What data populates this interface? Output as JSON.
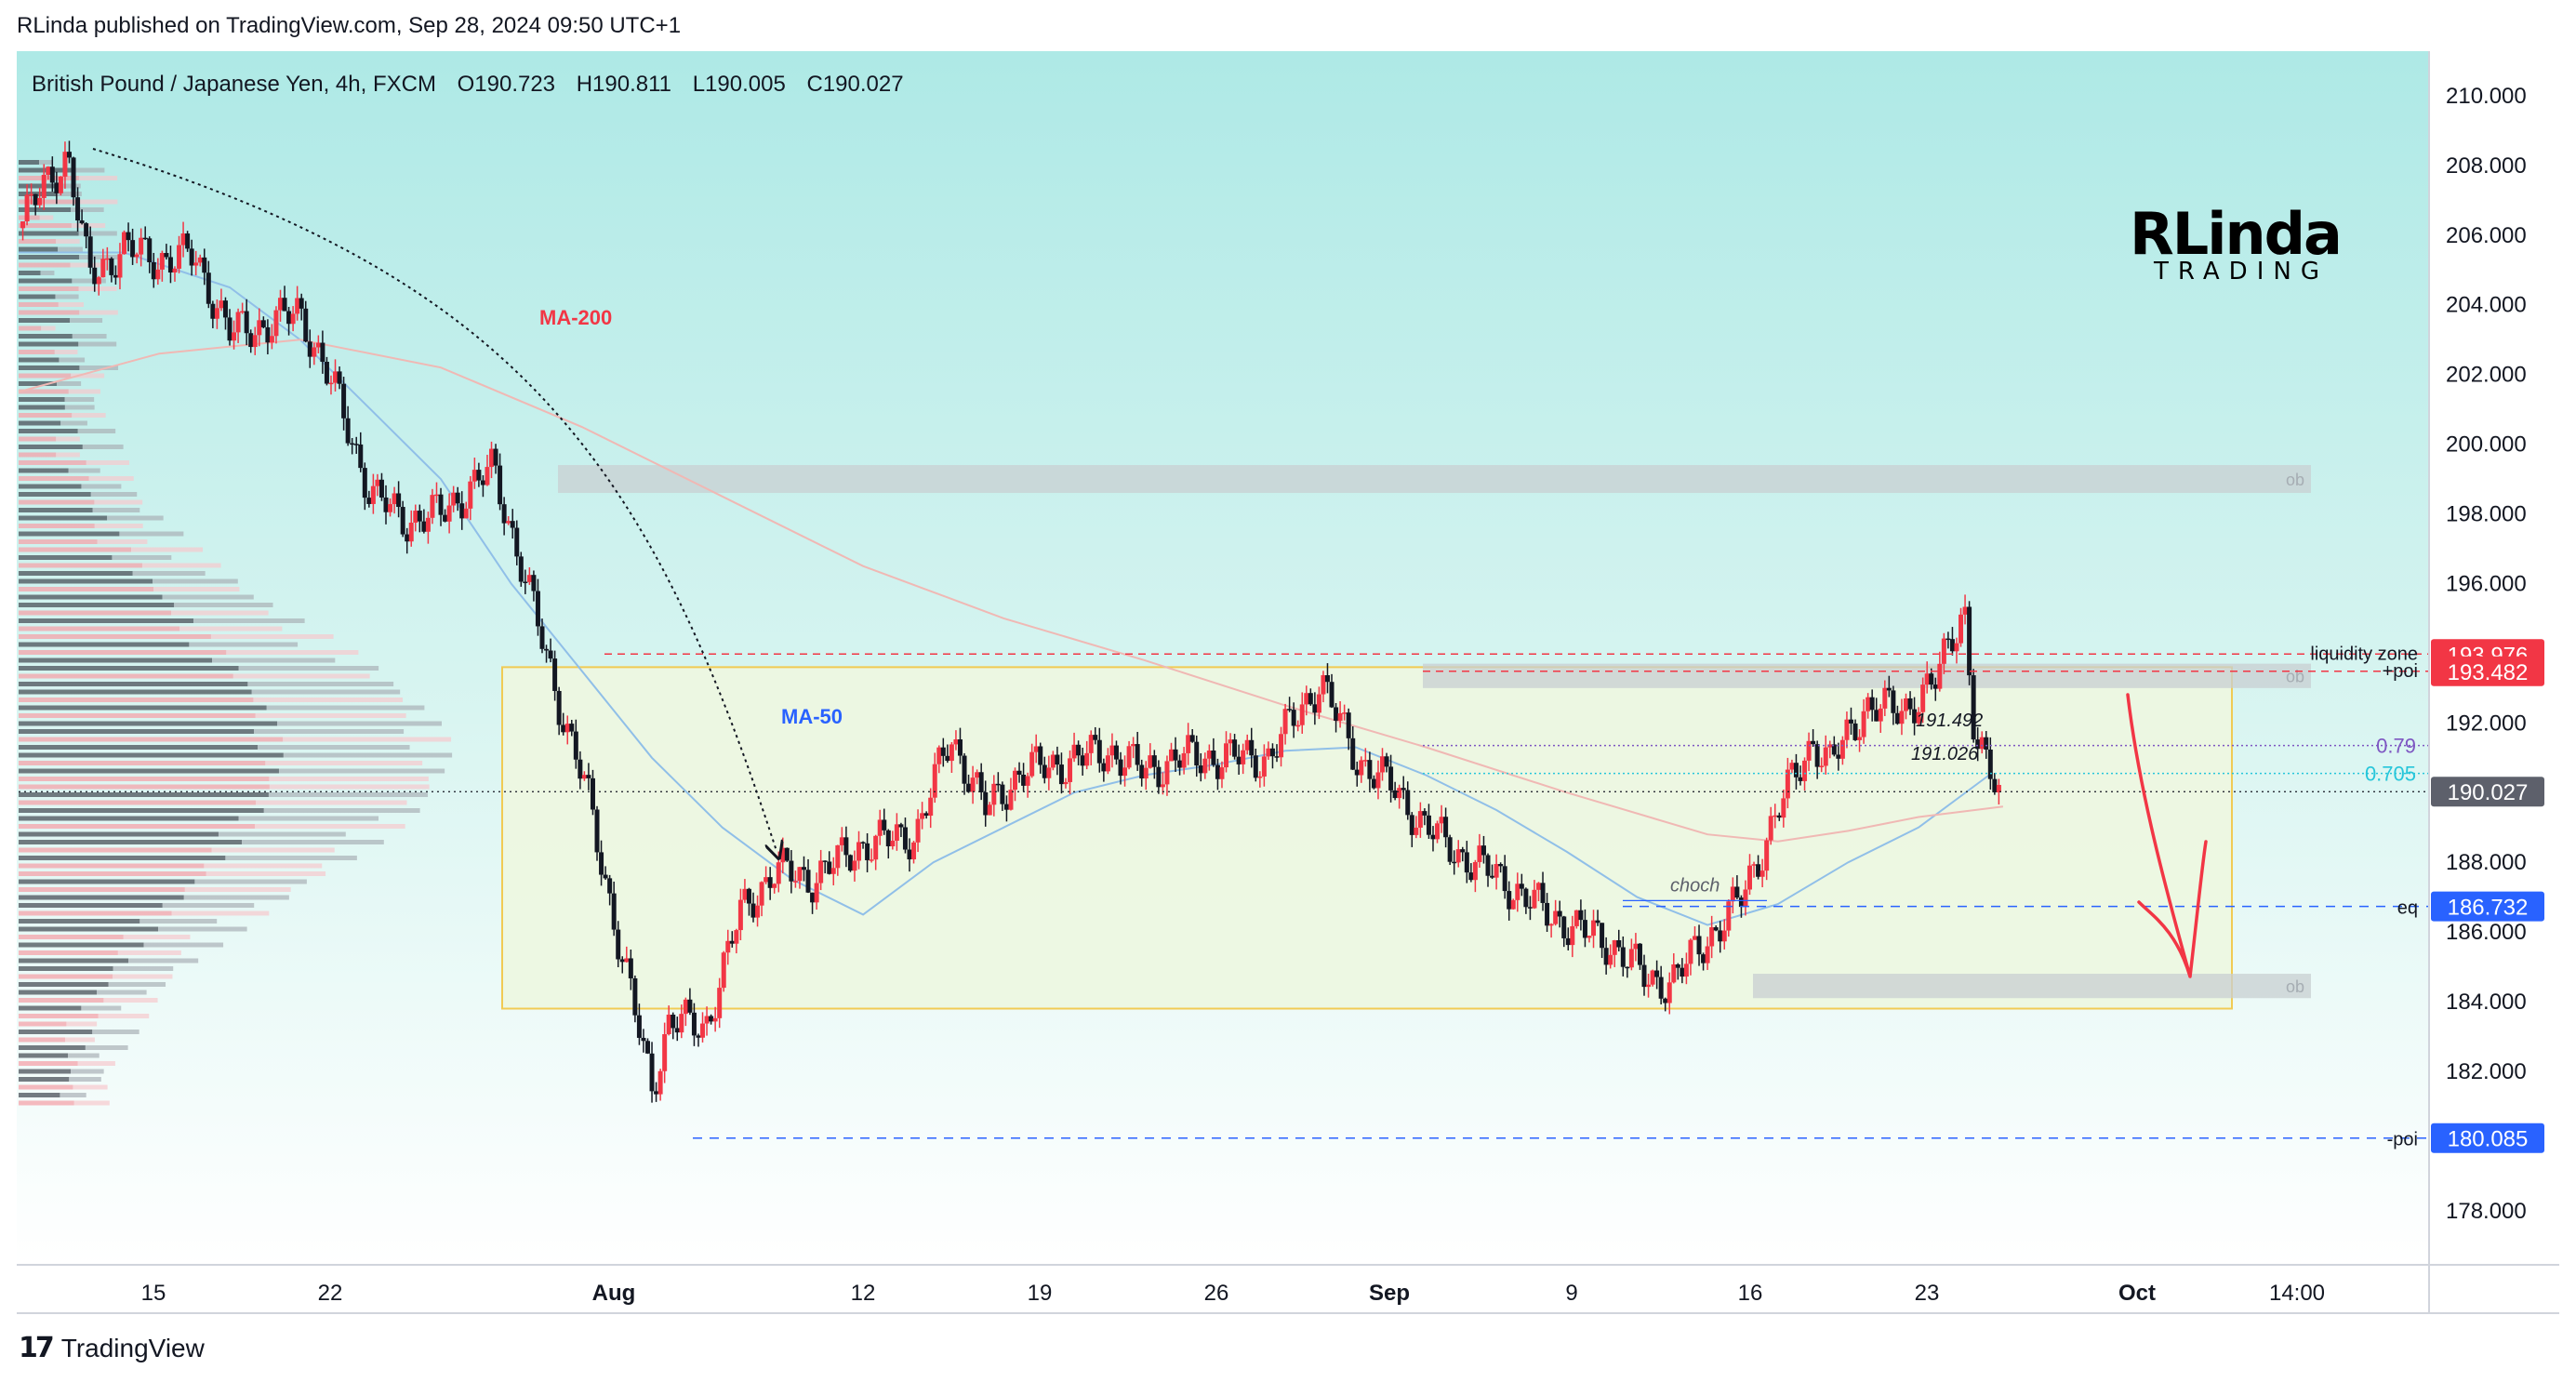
{
  "publisher": "RLinda published on TradingView.com, Sep 28, 2024 09:50 UTC+1",
  "footer": {
    "brand": "TradingView",
    "mark": "17"
  },
  "watermark": {
    "line1": "RLinda",
    "line2": "TRADING"
  },
  "colors": {
    "bg_top": "#aee9e6",
    "bg_bottom": "#ffffff",
    "bull": "#f23645",
    "bear": "#131722",
    "ma50": "#90bfe8",
    "ma200": "#f0b8b4",
    "zone_fill": "#eef8e2",
    "zone_border": "#f2c94c",
    "ob_fill": "#c8cfd2",
    "red_label": "#f23645",
    "price_label": "#5d606b",
    "blue_label": "#2962ff",
    "fib79": "#7e57c2",
    "fib705": "#26c6da"
  },
  "chart_data": {
    "type": "candlestick",
    "instrument": "British Pound / Japanese Yen, 4h, FXCM",
    "ohlc_header": {
      "O": "O190.723",
      "H": "H190.811",
      "L": "L190.005",
      "C": "C190.027"
    },
    "x_axis": {
      "ticks": [
        "15",
        "22",
        "Aug",
        "12",
        "19",
        "26",
        "Sep",
        "9",
        "16",
        "23",
        "Oct",
        "14:00"
      ],
      "bold": [
        "Aug",
        "Sep",
        "Oct"
      ]
    },
    "y_axis": {
      "ticks": [
        "210.000",
        "208.000",
        "206.000",
        "204.000",
        "202.000",
        "200.000",
        "198.000",
        "196.000",
        "194.000",
        "192.000",
        "190.000",
        "188.000",
        "186.000",
        "184.000",
        "182.000",
        "180.000",
        "178.000"
      ],
      "ylim": [
        176.5,
        211.2
      ]
    },
    "price_path": [
      [
        0,
        206.2
      ],
      [
        0.8,
        207.5
      ],
      [
        1.4,
        208.3
      ],
      [
        2.0,
        204.8
      ],
      [
        3.0,
        205.6
      ],
      [
        4.0,
        205.3
      ],
      [
        5.0,
        205.4
      ],
      [
        6.0,
        203.2
      ],
      [
        7.0,
        203.4
      ],
      [
        8.0,
        203.8
      ],
      [
        9.0,
        201.5
      ],
      [
        10.0,
        198.6
      ],
      [
        11.0,
        197.8
      ],
      [
        12.0,
        198.0
      ],
      [
        13.5,
        199.3
      ],
      [
        14.3,
        196.5
      ],
      [
        15.3,
        192.8
      ],
      [
        16.1,
        190.2
      ],
      [
        17.0,
        186.0
      ],
      [
        18.0,
        181.5
      ],
      [
        18.5,
        183.5
      ],
      [
        19.5,
        183.2
      ],
      [
        20.5,
        186.5
      ],
      [
        21.5,
        187.8
      ],
      [
        22.5,
        187.5
      ],
      [
        24.0,
        188.5
      ],
      [
        25.5,
        188.8
      ],
      [
        26.5,
        191.6
      ],
      [
        27.5,
        189.5
      ],
      [
        28.5,
        190.6
      ],
      [
        29.5,
        190.8
      ],
      [
        31.0,
        191.2
      ],
      [
        32.0,
        190.6
      ],
      [
        33.0,
        191.0
      ],
      [
        34.5,
        191.0
      ],
      [
        35.5,
        191.0
      ],
      [
        37.0,
        193.2
      ],
      [
        38.0,
        191.0
      ],
      [
        39.0,
        190.2
      ],
      [
        40.0,
        189.0
      ],
      [
        41.0,
        188.2
      ],
      [
        42.0,
        187.6
      ],
      [
        43.5,
        186.5
      ],
      [
        44.5,
        186.0
      ],
      [
        45.5,
        185.5
      ],
      [
        46.3,
        184.6
      ],
      [
        47.0,
        184.6
      ],
      [
        48.0,
        185.8
      ],
      [
        49.0,
        187.0
      ],
      [
        50.0,
        189.5
      ],
      [
        51.0,
        191.5
      ],
      [
        51.5,
        190.8
      ],
      [
        52.5,
        192.5
      ],
      [
        53.5,
        192.3
      ],
      [
        54.5,
        193.2
      ],
      [
        55.0,
        194.6
      ],
      [
        55.3,
        195.4
      ],
      [
        55.6,
        191.5
      ],
      [
        56.0,
        190.5
      ],
      [
        56.3,
        190.03
      ]
    ],
    "series": [
      {
        "name": "MA-50",
        "values": [
          [
            0,
            205.5
          ],
          [
            3,
            205.5
          ],
          [
            6,
            204.5
          ],
          [
            8,
            203.0
          ],
          [
            10,
            201.0
          ],
          [
            12,
            199.0
          ],
          [
            14,
            196.0
          ],
          [
            16,
            193.5
          ],
          [
            18,
            191.0
          ],
          [
            20,
            189.0
          ],
          [
            22,
            187.5
          ],
          [
            24,
            186.5
          ],
          [
            26,
            188.0
          ],
          [
            28,
            189.0
          ],
          [
            30,
            190.0
          ],
          [
            32,
            190.5
          ],
          [
            34,
            190.8
          ],
          [
            36,
            191.2
          ],
          [
            38,
            191.3
          ],
          [
            40,
            190.5
          ],
          [
            42,
            189.5
          ],
          [
            44,
            188.3
          ],
          [
            46,
            187.0
          ],
          [
            48,
            186.2
          ],
          [
            50,
            186.8
          ],
          [
            52,
            188.0
          ],
          [
            54,
            189.0
          ],
          [
            56,
            190.5
          ]
        ]
      },
      {
        "name": "MA-200",
        "values": [
          [
            0,
            201.5
          ],
          [
            4,
            202.6
          ],
          [
            8,
            203.0
          ],
          [
            12,
            202.2
          ],
          [
            16,
            200.5
          ],
          [
            20,
            198.5
          ],
          [
            24,
            196.5
          ],
          [
            28,
            195.0
          ],
          [
            32,
            193.8
          ],
          [
            36,
            192.5
          ],
          [
            40,
            191.3
          ],
          [
            44,
            190.0
          ],
          [
            48,
            188.8
          ],
          [
            50,
            188.6
          ],
          [
            52,
            188.9
          ],
          [
            54,
            189.3
          ],
          [
            56.4,
            189.6
          ]
        ]
      }
    ],
    "annotations": {
      "ma200_label": "MA-200",
      "ma50_label": "MA-50",
      "liquidity_zone": {
        "label": "liquidity zone",
        "price": 193.976,
        "tag": "193.976"
      },
      "poi_plus": {
        "label": "+poi",
        "price": 193.482,
        "tag": "193.482"
      },
      "fib_79": {
        "label": "0.79",
        "price": 191.35
      },
      "fib_705": {
        "label": "0.705",
        "price": 190.55
      },
      "current": {
        "tag": "190.027",
        "price": 190.027
      },
      "eq": {
        "label": "eq",
        "price": 186.732,
        "tag": "186.732"
      },
      "poi_minus": {
        "label": "-poi",
        "price": 180.085,
        "tag": "180.085"
      },
      "choch": "choch",
      "fib_high_text": "191.492",
      "fib_low_text": "191.026",
      "ob_label": "ob",
      "ob_zones": [
        [
          198.6,
          199.4
        ],
        [
          193.0,
          193.7
        ],
        [
          184.1,
          184.8
        ]
      ],
      "range_box": [
        183.8,
        193.6
      ]
    }
  }
}
